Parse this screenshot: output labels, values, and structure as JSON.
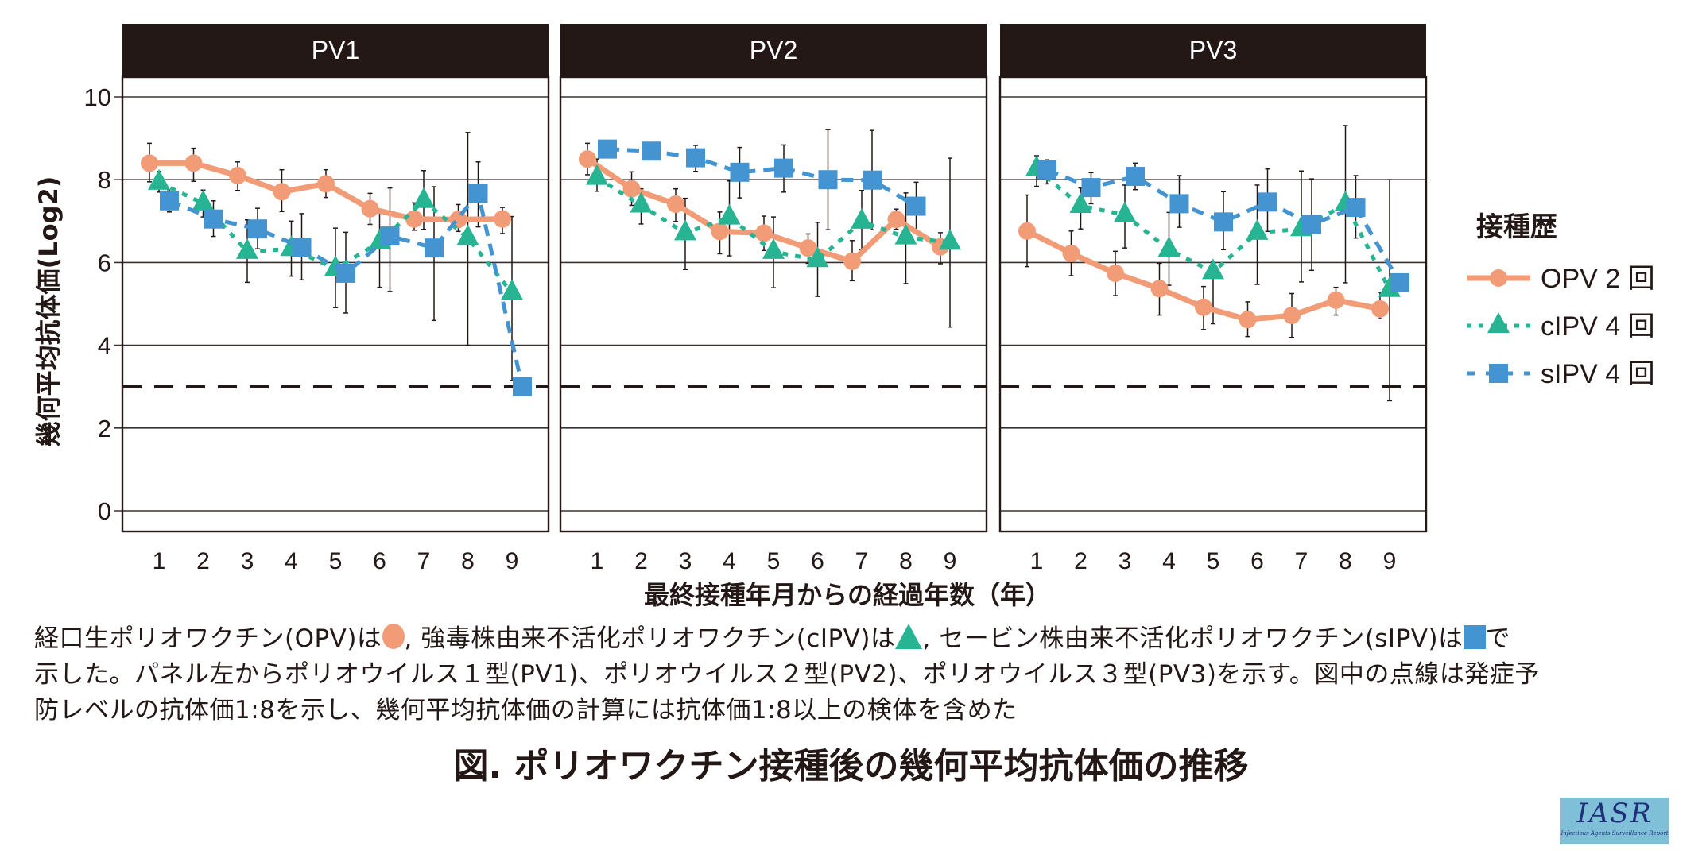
{
  "chart_data": {
    "type": "line",
    "title": "図. ポリオワクチン接種後の幾何平均抗体価の推移",
    "ylabel": "幾何平均抗体価(Log2)",
    "xlabel": "最終接種年月からの経過年数（年）",
    "ylim": [
      0,
      10
    ],
    "yticks": [
      "0",
      "2",
      "4",
      "6",
      "8",
      "10"
    ],
    "ytick_values": [
      0,
      2,
      4,
      6,
      8,
      10
    ],
    "x": [
      1,
      2,
      3,
      4,
      5,
      6,
      7,
      8,
      9
    ],
    "xtick_labels": [
      "1",
      "2",
      "3",
      "4",
      "5",
      "6",
      "7",
      "8",
      "9"
    ],
    "grid": true,
    "reference_line": {
      "value": 3,
      "style": "dashed",
      "meaning": "発症予防レベルの抗体価1:8"
    },
    "legend": {
      "title": "接種歴",
      "placement": "right",
      "items": [
        {
          "key": "opv",
          "label": "OPV 2 回",
          "marker": "circle",
          "line": "solid",
          "color": "#f19c76"
        },
        {
          "key": "cipv",
          "label": "cIPV 4 回",
          "marker": "triangle",
          "line": "dotted",
          "color": "#27b493"
        },
        {
          "key": "sipv",
          "label": "sIPV 4 回",
          "marker": "square",
          "line": "dashed",
          "color": "#4594d2"
        }
      ]
    },
    "panels": [
      {
        "name": "PV1",
        "series": [
          {
            "key": "opv",
            "values": [
              8.4,
              8.4,
              8.1,
              7.71,
              7.9,
              7.3,
              7.05,
              7.04,
              7.05
            ],
            "err_high": [
              8.88,
              8.76,
              8.43,
              8.24,
              8.24,
              7.67,
              7.44,
              7.4,
              7.33
            ],
            "err_low": [
              7.95,
              7.96,
              7.74,
              7.23,
              7.57,
              6.92,
              6.78,
              6.75,
              6.7
            ]
          },
          {
            "key": "cipv",
            "values": [
              7.93,
              7.43,
              6.26,
              6.33,
              5.85,
              6.49,
              7.49,
              6.59,
              5.27
            ],
            "err_high": [
              8.2,
              7.75,
              7.03,
              7.0,
              6.83,
              7.2,
              8.22,
              9.14,
              7.11
            ],
            "err_low": [
              7.7,
              7.1,
              5.52,
              5.67,
              4.91,
              5.4,
              6.8,
              4.0,
              3.15
            ]
          },
          {
            "key": "sipv",
            "values": [
              7.49,
              7.05,
              6.81,
              6.37,
              5.74,
              6.64,
              6.35,
              7.67,
              3.0
            ],
            "err_high": [
              7.76,
              7.49,
              7.31,
              7.18,
              6.73,
              7.8,
              7.83,
              8.43,
              null
            ],
            "err_low": [
              7.22,
              6.63,
              6.33,
              5.58,
              4.78,
              5.3,
              4.6,
              6.86,
              null
            ]
          }
        ]
      },
      {
        "name": "PV2",
        "series": [
          {
            "key": "opv",
            "values": [
              8.5,
              7.78,
              7.41,
              6.75,
              6.71,
              6.35,
              6.03,
              7.04,
              6.38
            ],
            "err_high": [
              8.88,
              8.19,
              7.78,
              7.22,
              7.12,
              6.69,
              6.53,
              7.29,
              6.72
            ],
            "err_low": [
              8.12,
              7.38,
              6.99,
              6.21,
              6.29,
              5.98,
              5.56,
              6.8,
              5.97
            ]
          },
          {
            "key": "cipv",
            "values": [
              8.05,
              7.38,
              6.71,
              7.09,
              6.26,
              6.06,
              6.99,
              6.61,
              6.48
            ],
            "err_high": [
              8.5,
              7.78,
              7.55,
              7.97,
              7.1,
              6.97,
              7.74,
              7.68,
              8.52
            ],
            "err_low": [
              7.72,
              6.93,
              5.83,
              6.16,
              5.39,
              5.18,
              6.3,
              5.49,
              4.44
            ]
          },
          {
            "key": "sipv",
            "values": [
              8.74,
              8.69,
              8.53,
              8.18,
              8.28,
              8.0,
              7.99,
              7.36,
              null
            ],
            "err_high": [
              null,
              null,
              8.83,
              8.78,
              8.84,
              9.21,
              9.19,
              7.94,
              null
            ],
            "err_low": [
              null,
              null,
              8.2,
              7.56,
              7.7,
              6.79,
              6.79,
              6.72,
              null
            ]
          }
        ]
      },
      {
        "name": "PV3",
        "series": [
          {
            "key": "opv",
            "values": [
              6.76,
              6.22,
              5.74,
              5.37,
              4.92,
              4.62,
              4.72,
              5.09,
              4.88
            ],
            "err_high": [
              7.63,
              6.76,
              6.27,
              5.98,
              5.42,
              5.05,
              5.25,
              5.4,
              5.28
            ],
            "err_low": [
              5.9,
              5.68,
              5.2,
              4.73,
              4.38,
              4.21,
              4.19,
              4.73,
              4.64
            ]
          },
          {
            "key": "cipv",
            "values": [
              8.26,
              7.37,
              7.15,
              6.31,
              5.77,
              6.72,
              6.81,
              7.41,
              5.34
            ],
            "err_high": [
              8.58,
              7.8,
              7.87,
              7.21,
              6.01,
              7.87,
              8.21,
              9.31,
              8.0
            ],
            "err_low": [
              7.84,
              6.81,
              6.35,
              5.45,
              4.52,
              5.47,
              5.53,
              5.51,
              2.66
            ]
          },
          {
            "key": "sipv",
            "values": [
              8.24,
              7.81,
              8.08,
              7.42,
              6.98,
              7.46,
              6.92,
              7.33,
              5.51
            ],
            "err_high": [
              8.48,
              8.17,
              8.4,
              8.1,
              7.71,
              8.26,
              8.02,
              8.1,
              null
            ],
            "err_low": [
              7.9,
              7.42,
              7.76,
              6.85,
              6.31,
              6.75,
              5.81,
              6.59,
              null
            ]
          }
        ]
      }
    ]
  },
  "caption": {
    "line1_a": "経口生ポリオワクチン(OPV)は",
    "line1_b": ", 強毒株由来不活化ポリオワクチン(cIPV)は",
    "line1_c": ", セービン株由来不活化ポリオワクチン(sIPV)は",
    "line1_d": "で",
    "line2": "示した。パネル左からポリオウイルス１型(PV1)、ポリオウイルス２型(PV2)、ポリオウイルス３型(PV3)を示す。図中の点線は発症予",
    "line3": "防レベルの抗体価1:8を示し、幾何平均抗体価の計算には抗体価1:8以上の検体を含めた"
  },
  "figure_title": "図. ポリオワクチン接種後の幾何平均抗体価の推移",
  "logo": {
    "text": "IASR",
    "subtitle": "Infectious Agents Surveillance Report"
  },
  "colors": {
    "opv": "#f19c76",
    "cipv": "#27b493",
    "sipv": "#4594d2",
    "header_bg": "#231815",
    "ink": "#231815"
  }
}
